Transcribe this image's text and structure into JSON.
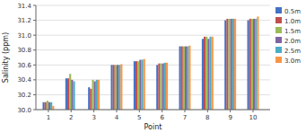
{
  "chart_data": {
    "type": "bar",
    "xlabel": "Point",
    "ylabel": "Salinity (ppm)",
    "x": [
      1,
      2,
      3,
      4,
      5,
      6,
      7,
      8,
      9,
      10
    ],
    "xlim": [
      0.45,
      10.75
    ],
    "xticks": [
      1,
      2,
      3,
      4,
      5,
      6,
      7,
      8,
      9,
      10
    ],
    "ylim": [
      30.0,
      31.4
    ],
    "yticks": [
      {
        "value": 30.0,
        "label": "30.0"
      },
      30.2,
      30.4,
      30.6,
      30.8,
      {
        "value": 31.0,
        "label": "31.0"
      },
      31.2,
      31.4
    ],
    "grid": true,
    "legend": "right",
    "series": [
      {
        "name": "0.5m",
        "color": "#4472c4",
        "values": [
          30.1,
          30.42,
          30.3,
          30.6,
          30.65,
          30.6,
          30.85,
          30.95,
          31.2,
          31.2
        ]
      },
      {
        "name": "1.0m",
        "color": "#c0504d",
        "values": [
          30.1,
          30.42,
          30.28,
          30.6,
          30.65,
          30.62,
          30.85,
          30.98,
          31.22,
          31.22
        ]
      },
      {
        "name": "1.5m",
        "color": "#9bbb59",
        "values": [
          30.12,
          30.48,
          30.4,
          30.6,
          30.65,
          30.62,
          30.85,
          30.98,
          31.22,
          31.22
        ]
      },
      {
        "name": "2.0m",
        "color": "#8064a2",
        "values": [
          30.1,
          30.4,
          30.38,
          30.6,
          30.67,
          30.62,
          30.85,
          30.95,
          31.22,
          31.22
        ]
      },
      {
        "name": "2.5m",
        "color": "#4bacc6",
        "values": [
          30.1,
          30.38,
          30.4,
          30.6,
          30.67,
          30.63,
          30.85,
          30.98,
          31.22,
          31.22
        ]
      },
      {
        "name": "3.0m",
        "color": "#f79646",
        "values": [
          30.05,
          30.0,
          30.4,
          30.61,
          30.68,
          30.63,
          30.86,
          30.98,
          31.22,
          31.25
        ]
      }
    ]
  }
}
